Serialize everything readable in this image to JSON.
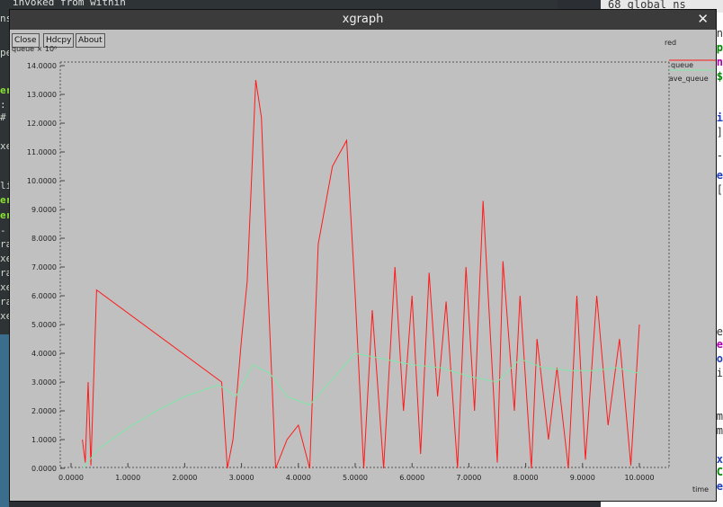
{
  "window": {
    "title": "xgraph",
    "close_glyph": "✕"
  },
  "buttons": {
    "close": "Close",
    "hdcpy": "Hdcpy",
    "about": "About"
  },
  "background": {
    "terminal_top_line": "invoked from within",
    "editor_top_line": "68 global ns"
  },
  "colors": {
    "red_series": "#ff1a1a",
    "queue_series": "#7fe8a8",
    "bg": "#c0c0c0"
  },
  "chart_data": {
    "type": "line",
    "title": "",
    "ylabel": "queue × 10⁰",
    "xlabel": "time",
    "xlim": [
      0.0,
      10.0
    ],
    "ylim": [
      0.0,
      14.0
    ],
    "x_ticks": [
      "0.0000",
      "1.0000",
      "2.0000",
      "3.0000",
      "4.0000",
      "5.0000",
      "6.0000",
      "7.0000",
      "8.0000",
      "9.0000",
      "10.0000"
    ],
    "y_ticks": [
      "0.0000",
      "1.0000",
      "2.0000",
      "3.0000",
      "4.0000",
      "5.0000",
      "6.0000",
      "7.0000",
      "8.0000",
      "9.0000",
      "10.0000",
      "11.0000",
      "12.0000",
      "13.0000",
      "14.0000"
    ],
    "legend": [
      "red",
      "queue",
      "ave_queue"
    ],
    "series": [
      {
        "name": "queue",
        "color": "#ff1a1a",
        "x": [
          0.2,
          0.25,
          0.3,
          0.35,
          0.45,
          2.65,
          2.75,
          2.85,
          3.0,
          3.1,
          3.25,
          3.35,
          3.45,
          3.6,
          3.8,
          4.0,
          4.2,
          4.35,
          4.6,
          4.85,
          5.0,
          5.15,
          5.3,
          5.5,
          5.7,
          5.85,
          6.0,
          6.15,
          6.3,
          6.45,
          6.6,
          6.8,
          6.95,
          7.1,
          7.25,
          7.5,
          7.6,
          7.8,
          7.9,
          8.1,
          8.2,
          8.4,
          8.55,
          8.75,
          8.9,
          9.05,
          9.25,
          9.45,
          9.65,
          9.85,
          10.0
        ],
        "y": [
          1.0,
          0.2,
          3.0,
          0.1,
          6.2,
          3.0,
          0.0,
          1.0,
          4.5,
          6.5,
          13.5,
          12.2,
          7.0,
          0.0,
          1.0,
          1.5,
          0.0,
          7.8,
          10.5,
          11.4,
          6.0,
          0.0,
          5.5,
          0.0,
          7.0,
          2.0,
          6.0,
          0.5,
          6.8,
          2.5,
          5.8,
          0.0,
          7.0,
          2.0,
          9.3,
          0.2,
          7.2,
          2.0,
          6.0,
          0.0,
          4.5,
          1.0,
          3.5,
          0.0,
          6.0,
          0.3,
          6.0,
          1.5,
          4.5,
          0.1,
          5.0
        ]
      },
      {
        "name": "ave_queue",
        "color": "#7fe8a8",
        "x": [
          0.2,
          0.5,
          1.0,
          1.5,
          2.0,
          2.6,
          2.9,
          3.2,
          3.5,
          3.8,
          4.2,
          4.6,
          5.0,
          5.5,
          6.0,
          6.5,
          7.0,
          7.5,
          7.9,
          8.3,
          8.8,
          9.2,
          9.6,
          10.0
        ],
        "y": [
          0.0,
          0.7,
          1.4,
          2.0,
          2.5,
          2.9,
          2.5,
          3.6,
          3.3,
          2.5,
          2.2,
          3.1,
          4.0,
          3.8,
          3.6,
          3.5,
          3.2,
          3.0,
          3.8,
          3.5,
          3.4,
          3.4,
          3.5,
          3.3
        ]
      }
    ]
  }
}
